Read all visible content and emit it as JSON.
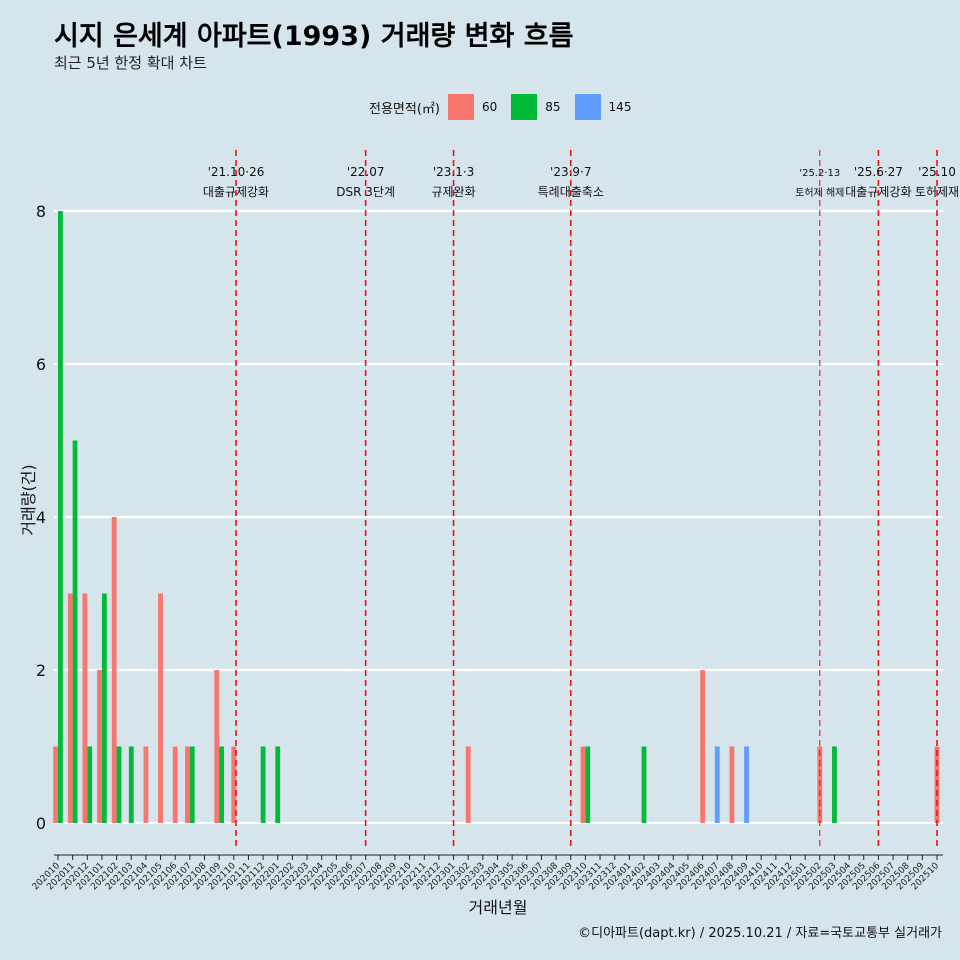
{
  "header": {
    "title": "시지 은세계 아파트(1993) 거래량 변화 흐름",
    "subtitle": "최근 5년 한정 확대 차트"
  },
  "footer": {
    "credit": "©디아파트(dapt.kr) / 2025.10.21 / 자료=국토교통부 실거래가"
  },
  "chart_data": {
    "type": "bar",
    "title": "시지 은세계 아파트(1993) 거래량 변화 흐름",
    "subtitle": "최근 5년 한정 확대 차트",
    "xlabel": "거래년월",
    "ylabel": "거래량(건)",
    "ylim": [
      0,
      8
    ],
    "yticks": [
      0,
      2,
      4,
      6,
      8
    ],
    "legend_title": "전용면적(㎡)",
    "legend_position": "top",
    "grid": true,
    "categories": [
      "202010",
      "202011",
      "202012",
      "202101",
      "202102",
      "202103",
      "202104",
      "202105",
      "202106",
      "202107",
      "202108",
      "202109",
      "202110",
      "202111",
      "202112",
      "202201",
      "202202",
      "202203",
      "202204",
      "202205",
      "202206",
      "202207",
      "202208",
      "202209",
      "202210",
      "202211",
      "202212",
      "202301",
      "202302",
      "202303",
      "202304",
      "202305",
      "202306",
      "202307",
      "202308",
      "202309",
      "202310",
      "202311",
      "202312",
      "202401",
      "202402",
      "202403",
      "202404",
      "202405",
      "202406",
      "202407",
      "202408",
      "202409",
      "202410",
      "202411",
      "202412",
      "202501",
      "202502",
      "202503",
      "202504",
      "202505",
      "202506",
      "202507",
      "202508",
      "202509",
      "202510"
    ],
    "series": [
      {
        "name": "60",
        "color": "#f8766d",
        "values": [
          1,
          3,
          3,
          2,
          4,
          0,
          1,
          3,
          1,
          1,
          0,
          2,
          1,
          0,
          0,
          0,
          0,
          0,
          0,
          0,
          0,
          0,
          0,
          0,
          0,
          0,
          0,
          0,
          1,
          0,
          0,
          0,
          0,
          0,
          0,
          0,
          1,
          0,
          0,
          0,
          0,
          0,
          0,
          0,
          2,
          0,
          1,
          0,
          0,
          0,
          0,
          0,
          1,
          0,
          0,
          0,
          0,
          0,
          0,
          0,
          1
        ]
      },
      {
        "name": "85",
        "color": "#00ba38",
        "values": [
          8,
          5,
          1,
          3,
          1,
          1,
          0,
          0,
          0,
          1,
          0,
          1,
          0,
          0,
          1,
          1,
          0,
          0,
          0,
          0,
          0,
          0,
          0,
          0,
          0,
          0,
          0,
          0,
          0,
          0,
          0,
          0,
          0,
          0,
          0,
          0,
          1,
          0,
          0,
          0,
          1,
          0,
          0,
          0,
          0,
          0,
          0,
          0,
          0,
          0,
          0,
          0,
          0,
          1,
          0,
          0,
          0,
          0,
          0,
          0,
          0
        ]
      },
      {
        "name": "145",
        "color": "#619cff",
        "values": [
          0,
          0,
          0,
          0,
          0,
          0,
          0,
          0,
          0,
          0,
          0,
          0,
          0,
          0,
          0,
          0,
          0,
          0,
          0,
          0,
          0,
          0,
          0,
          0,
          0,
          0,
          0,
          0,
          0,
          0,
          0,
          0,
          0,
          0,
          0,
          0,
          0,
          0,
          0,
          0,
          0,
          0,
          0,
          0,
          0,
          1,
          0,
          1,
          0,
          0,
          0,
          0,
          0,
          0,
          0,
          0,
          0,
          0,
          0,
          0,
          0
        ]
      }
    ],
    "events": [
      {
        "date": "'21.10·26",
        "label": "대출규제강화",
        "month": "202110",
        "offset": 0.15,
        "style": "bold"
      },
      {
        "date": "'22.07",
        "label": "DSR 3단계",
        "month": "202207",
        "offset": 0.0,
        "style": "bold"
      },
      {
        "date": "'23.1·3",
        "label": "규제완화",
        "month": "202301",
        "offset": 0.0,
        "style": "bold"
      },
      {
        "date": "'23.9·7",
        "label": "특례대출축소",
        "month": "202309",
        "offset": 0.0,
        "style": "bold"
      },
      {
        "date": "'25.2·13",
        "label": "토허제 해제",
        "month": "202502",
        "offset": 0.0,
        "style": "thin"
      },
      {
        "date": "'25.6·27",
        "label": "대출규제강화",
        "month": "202506",
        "offset": 0.0,
        "style": "bold"
      },
      {
        "date": "'25.10",
        "label": "토허제재",
        "month": "202510",
        "offset": 0.0,
        "style": "bold"
      }
    ]
  }
}
